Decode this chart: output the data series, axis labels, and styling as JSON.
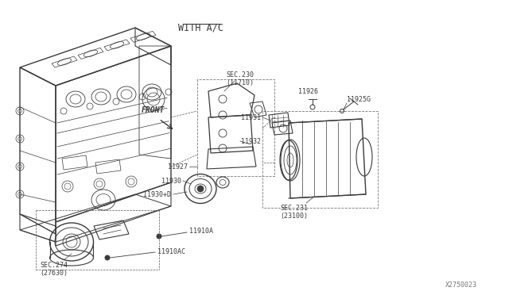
{
  "bg_color": "#ffffff",
  "line_color": "#3a3a3a",
  "title": "WITH A/C",
  "diagram_number": "X2750023",
  "labels": {
    "sec230": "SEC.230\n(11710)",
    "sec231": "SEC.231\n(23100)",
    "sec274": "SEC.274\n(27630)",
    "front": "FRONT",
    "p11910a": "11910A",
    "p11910ac": "11910AC",
    "p11926": "11926",
    "p11927": "11927",
    "p11930": "11930",
    "p11930d": "11930+D",
    "p11931": "11931",
    "p11932": "11932",
    "p11925g": "11925G"
  },
  "font_size_title": 8.5,
  "font_size_label": 6.5,
  "font_size_small": 6.0
}
